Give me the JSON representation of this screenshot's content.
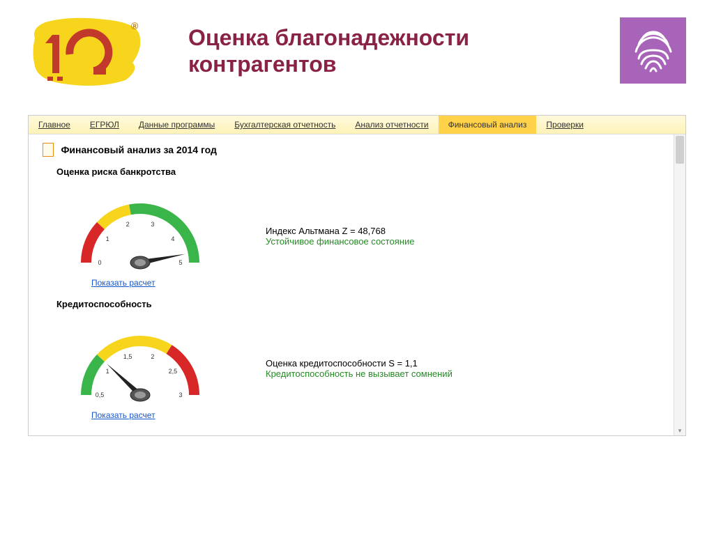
{
  "title_line1": "Оценка благонадежности",
  "title_line2": "контрагентов",
  "logo": {
    "letter": "C",
    "trademark": "®",
    "bg_color": "#f7d51d",
    "fg_color": "#c0392b"
  },
  "badge": {
    "bg": "#a864b8",
    "icon": "fingerprint"
  },
  "tabs": [
    {
      "label": "Главное",
      "active": false
    },
    {
      "label": "ЕГРЮЛ",
      "active": false
    },
    {
      "label": "Данные программы",
      "active": false
    },
    {
      "label": "Бухгалтерская отчетность",
      "active": false
    },
    {
      "label": "Анализ отчетности",
      "active": false
    },
    {
      "label": "Финансовый анализ",
      "active": true
    },
    {
      "label": "Проверки",
      "active": false
    }
  ],
  "section_title": "Финансовый анализ за 2014 год",
  "gauge1": {
    "heading": "Оценка риска банкротства",
    "type": "gauge",
    "min": 0,
    "max": 5,
    "ticks": [
      "0",
      "1",
      "2",
      "3",
      "4",
      "5"
    ],
    "value": 4.7,
    "segments": [
      {
        "from": 0,
        "to": 1.2,
        "color": "#d72727"
      },
      {
        "from": 1.2,
        "to": 2.2,
        "color": "#f7d51d"
      },
      {
        "from": 2.2,
        "to": 5,
        "color": "#39b54a"
      }
    ],
    "tick_fontsize": 9,
    "show_calc_label": "Показать расчет",
    "metric_line1": "Индекс Альтмана Z = 48,768",
    "metric_line2": "Устойчивое финансовое состояние",
    "status_color": "#248a24"
  },
  "gauge2": {
    "heading": "Кредитоспособность",
    "type": "gauge",
    "min": 0.5,
    "max": 3,
    "ticks": [
      "0,5",
      "1",
      "1,5",
      "2",
      "2,5",
      "3"
    ],
    "value": 1.1,
    "segments": [
      {
        "from": 0.5,
        "to": 1.1,
        "color": "#39b54a"
      },
      {
        "from": 1.1,
        "to": 2.2,
        "color": "#f7d51d"
      },
      {
        "from": 2.2,
        "to": 3,
        "color": "#d72727"
      }
    ],
    "tick_fontsize": 9,
    "show_calc_label": "Показать расчет",
    "metric_line1": "Оценка кредитоспособности S = 1,1",
    "metric_line2": "Кредитоспособность не вызывает сомнений",
    "status_color": "#248a24"
  }
}
